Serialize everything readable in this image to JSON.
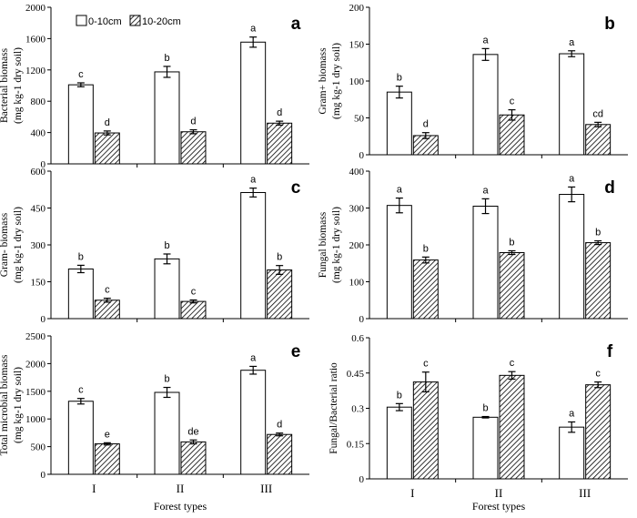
{
  "legend": [
    "0-10cm",
    "10-20cm"
  ],
  "colors": {
    "surface": "#ffffff",
    "subsurface_hatch": "#000000",
    "axis": "#000000"
  },
  "chart_data": [
    {
      "type": "bar",
      "letter": "a",
      "ylabel_lines": [
        "Bacterial biomass",
        "(mg kg-1 dry soil)"
      ],
      "categories": [
        "I",
        "II",
        "III"
      ],
      "ylim": [
        0,
        2000
      ],
      "yticks": [
        0,
        400,
        800,
        1200,
        1600,
        2000
      ],
      "ytick_labels": [
        "0",
        "400",
        "800",
        "1200",
        "1600",
        "2000"
      ],
      "series": [
        {
          "name": "0-10cm",
          "values": [
            1010,
            1175,
            1555
          ],
          "errors": [
            25,
            70,
            65
          ],
          "letters": [
            "c",
            "b",
            "a"
          ]
        },
        {
          "name": "10-20cm",
          "values": [
            395,
            410,
            520
          ],
          "errors": [
            25,
            25,
            25
          ],
          "letters": [
            "d",
            "d",
            "d"
          ]
        }
      ],
      "xlabel": "",
      "show_categories": false
    },
    {
      "type": "bar",
      "letter": "b",
      "ylabel_lines": [
        "Gram+ biomass",
        "(mg kg-1 dry soil)"
      ],
      "categories": [
        "I",
        "II",
        "III"
      ],
      "ylim": [
        0,
        200
      ],
      "yticks": [
        0,
        50,
        100,
        150,
        200
      ],
      "ytick_labels": [
        "0",
        "50",
        "100",
        "150",
        "200"
      ],
      "series": [
        {
          "name": "0-10cm",
          "values": [
            85,
            136,
            137
          ],
          "errors": [
            8,
            8,
            4
          ],
          "letters": [
            "b",
            "a",
            "a"
          ]
        },
        {
          "name": "10-20cm",
          "values": [
            26,
            54,
            41
          ],
          "errors": [
            4,
            7,
            3
          ],
          "letters": [
            "d",
            "c",
            "cd"
          ]
        }
      ],
      "xlabel": "",
      "show_categories": false
    },
    {
      "type": "bar",
      "letter": "c",
      "ylabel_lines": [
        "Gram- biomass",
        "(mg kg-1 dry soil)"
      ],
      "categories": [
        "I",
        "II",
        "III"
      ],
      "ylim": [
        0,
        600
      ],
      "yticks": [
        0,
        150,
        300,
        450,
        600
      ],
      "ytick_labels": [
        "0",
        "150",
        "300",
        "450",
        "600"
      ],
      "series": [
        {
          "name": "0-10cm",
          "values": [
            202,
            243,
            513
          ],
          "errors": [
            15,
            20,
            18
          ],
          "letters": [
            "b",
            "b",
            "a"
          ]
        },
        {
          "name": "10-20cm",
          "values": [
            75,
            70,
            198
          ],
          "errors": [
            8,
            6,
            18
          ],
          "letters": [
            "c",
            "c",
            "b"
          ]
        }
      ],
      "xlabel": "",
      "show_categories": false
    },
    {
      "type": "bar",
      "letter": "d",
      "ylabel_lines": [
        "Fungal biomass",
        "(mg kg-1 dry soil)"
      ],
      "categories": [
        "I",
        "II",
        "III"
      ],
      "ylim": [
        0,
        400
      ],
      "yticks": [
        0,
        100,
        200,
        300,
        400
      ],
      "ytick_labels": [
        "0",
        "100",
        "200",
        "300",
        "400"
      ],
      "series": [
        {
          "name": "0-10cm",
          "values": [
            307,
            305,
            337
          ],
          "errors": [
            20,
            20,
            20
          ],
          "letters": [
            "a",
            "a",
            "a"
          ]
        },
        {
          "name": "10-20cm",
          "values": [
            159,
            179,
            206
          ],
          "errors": [
            8,
            5,
            5
          ],
          "letters": [
            "b",
            "b",
            "b"
          ]
        }
      ],
      "xlabel": "",
      "show_categories": false
    },
    {
      "type": "bar",
      "letter": "e",
      "ylabel_lines": [
        "Total microbial biomass",
        "(mg kg-1 dry soil)"
      ],
      "categories": [
        "I",
        "II",
        "III"
      ],
      "ylim": [
        0,
        2500
      ],
      "yticks": [
        0,
        500,
        1000,
        1500,
        2000,
        2500
      ],
      "ytick_labels": [
        "0",
        "500",
        "1000",
        "1500",
        "2000",
        "2500"
      ],
      "series": [
        {
          "name": "0-10cm",
          "values": [
            1320,
            1480,
            1880
          ],
          "errors": [
            50,
            90,
            70
          ],
          "letters": [
            "c",
            "b",
            "a"
          ]
        },
        {
          "name": "10-20cm",
          "values": [
            550,
            585,
            720
          ],
          "errors": [
            20,
            35,
            25
          ],
          "letters": [
            "e",
            "de",
            "d"
          ]
        }
      ],
      "xlabel": "Forest types",
      "show_categories": true
    },
    {
      "type": "bar",
      "letter": "f",
      "ylabel_lines": [
        "Fungal/Bacterial ratio"
      ],
      "categories": [
        "I",
        "II",
        "III"
      ],
      "ylim": [
        0,
        0.6
      ],
      "yticks": [
        0,
        0.15,
        0.3,
        0.45,
        0.6
      ],
      "ytick_labels": [
        "0",
        "0.15",
        "0.3",
        "0.45",
        "0.6"
      ],
      "series": [
        {
          "name": "0-10cm",
          "values": [
            0.305,
            0.262,
            0.22
          ],
          "errors": [
            0.015,
            0.003,
            0.022
          ],
          "letters": [
            "b",
            "b",
            "a"
          ]
        },
        {
          "name": "10-20cm",
          "values": [
            0.412,
            0.44,
            0.4
          ],
          "errors": [
            0.042,
            0.016,
            0.012
          ],
          "letters": [
            "c",
            "c",
            "c"
          ]
        }
      ],
      "xlabel": "Forest types",
      "show_categories": true
    }
  ]
}
